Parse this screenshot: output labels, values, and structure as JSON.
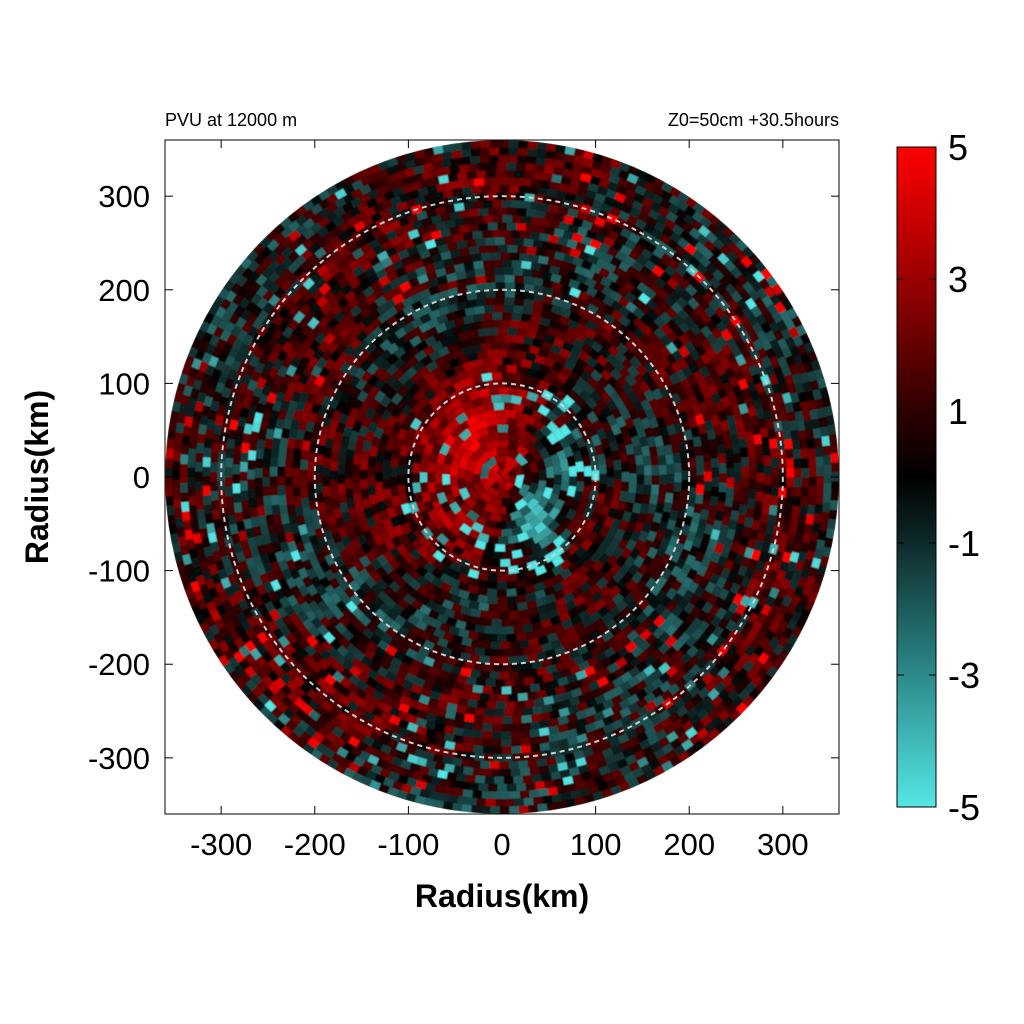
{
  "chart_data": {
    "type": "heatmap",
    "title_left": "PVU at 12000 m",
    "title_right": "Z0=50cm  +30.5hours",
    "xlabel": "Radius(km)",
    "ylabel": "Radius(km)",
    "xlim": [
      -360,
      360
    ],
    "ylim": [
      -360,
      360
    ],
    "xticks": [
      -300,
      -200,
      -100,
      0,
      100,
      200,
      300
    ],
    "yticks": [
      300,
      200,
      100,
      0,
      -100,
      -200,
      -300
    ],
    "domain_radius_km": 360,
    "reference_circles_km": [
      100,
      200,
      300
    ],
    "colorbar": {
      "range": [
        -5,
        5
      ],
      "ticks": [
        5,
        3,
        1,
        -1,
        -3,
        -5
      ],
      "colors": {
        "max": "#ff0000",
        "zero": "#000000",
        "min": "#55e6e6"
      }
    },
    "features": [
      {
        "name": "core positive PV",
        "center_km": [
          -20,
          20
        ],
        "radius_km": 95,
        "value": 3.5
      },
      {
        "name": "inner negative filament",
        "center_km": [
          30,
          -45
        ],
        "radius_km": 30,
        "value": -4.5
      },
      {
        "name": "inner negative patches",
        "center_km": [
          60,
          10
        ],
        "radius_km": 40,
        "value": -3.5
      },
      {
        "name": "outer ring mixed anomalies",
        "radius_km": 300,
        "value": 1.5
      }
    ]
  }
}
